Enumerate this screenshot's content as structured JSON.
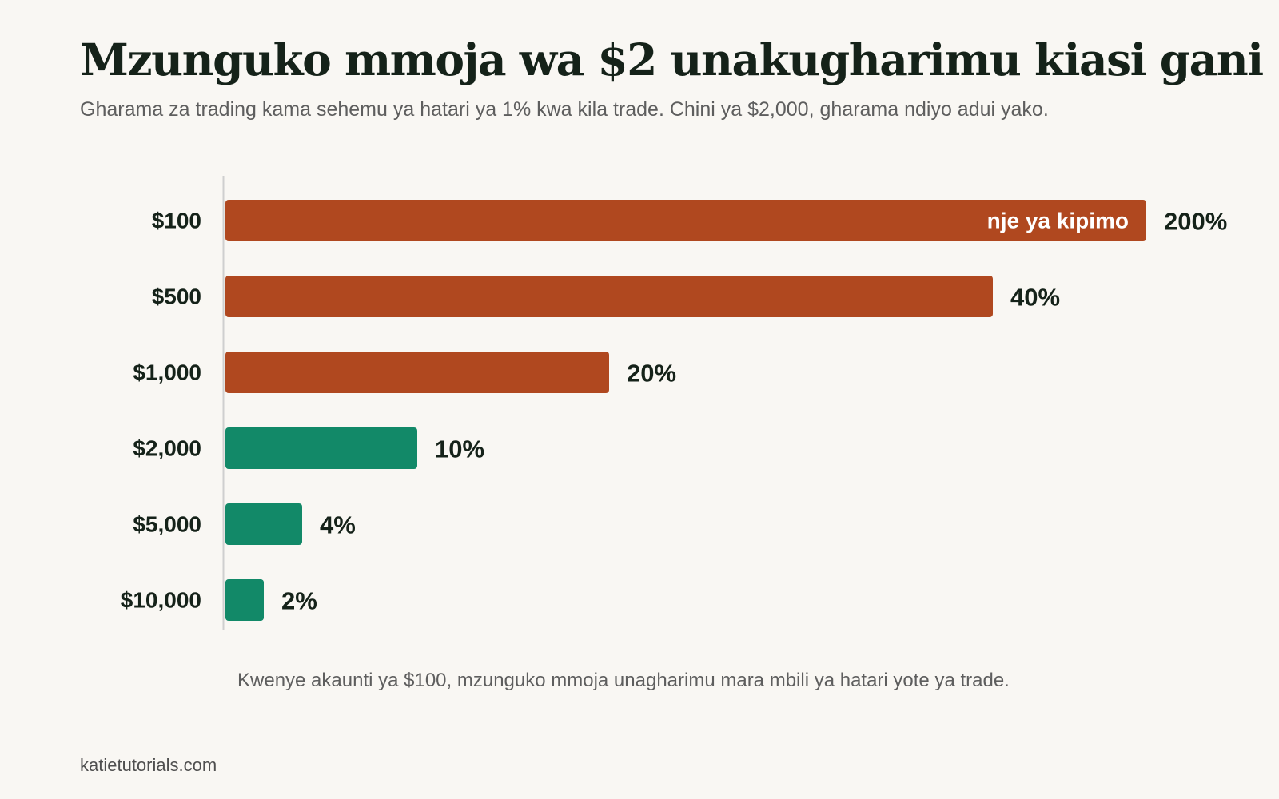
{
  "title": "Mzunguko mmoja wa $2 unakugharimu kiasi gani",
  "subtitle": "Gharama za trading kama sehemu ya hatari ya 1% kwa kila trade. Chini ya $2,000, gharama ndiyo adui yako.",
  "caption": "Kwenye akaunti ya $100, mzunguko mmoja unagharimu mara mbili ya hatari yote ya trade.",
  "source": "katietutorials.com",
  "colors": {
    "cost_dominant": "#b0481f",
    "cost_manageable": "#128968",
    "background": "#f9f7f3",
    "axis": "#cfcfcf"
  },
  "chart_data": {
    "type": "bar",
    "orientation": "horizontal",
    "categories": [
      "$100",
      "$500",
      "$1,000",
      "$2,000",
      "$5,000",
      "$10,000"
    ],
    "values": [
      200,
      40,
      20,
      10,
      4,
      2
    ],
    "value_labels": [
      "200%",
      "40%",
      "20%",
      "10%",
      "4%",
      "2%"
    ],
    "unit": "%",
    "xlim": [
      0,
      48
    ],
    "clipped": [
      true,
      false,
      false,
      false,
      false,
      false
    ],
    "clipped_label": "nje ya kipimo",
    "bar_colors": [
      "#b0481f",
      "#b0481f",
      "#b0481f",
      "#128968",
      "#128968",
      "#128968"
    ],
    "grid": false,
    "legend": "none"
  }
}
